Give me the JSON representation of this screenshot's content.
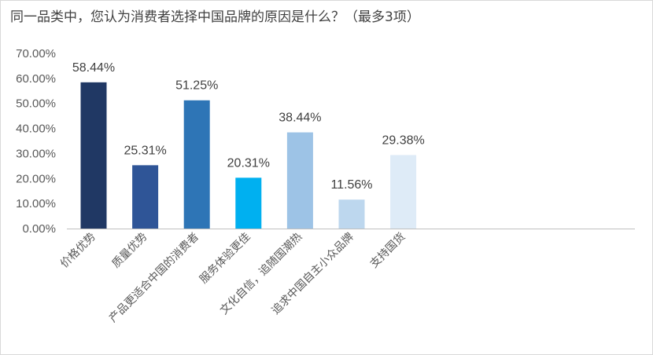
{
  "chart_data": {
    "type": "bar",
    "title": "同一品类中，您认为消费者选择中国品牌的原因是什么？（最多3项）",
    "categories": [
      "价格优势",
      "质量优势",
      "产品更适合中国的消费者",
      "服务体验更佳",
      "文化自信，追随国潮热",
      "追求中国自主小众品牌",
      "支持国货"
    ],
    "values": [
      58.44,
      25.31,
      51.25,
      20.31,
      38.44,
      11.56,
      29.38
    ],
    "data_labels": [
      "58.44%",
      "25.31%",
      "51.25%",
      "20.31%",
      "38.44%",
      "11.56%",
      "29.38%"
    ],
    "bar_colors": [
      "#203864",
      "#2f5597",
      "#2e75b6",
      "#00b0f0",
      "#9dc3e6",
      "#bdd7ee",
      "#deebf7"
    ],
    "ylim": [
      0,
      70
    ],
    "yticks": [
      "0.00%",
      "10.00%",
      "20.00%",
      "30.00%",
      "40.00%",
      "50.00%",
      "60.00%",
      "70.00%"
    ],
    "xlabel": "",
    "ylabel": "",
    "grid": false,
    "legend": "none"
  }
}
